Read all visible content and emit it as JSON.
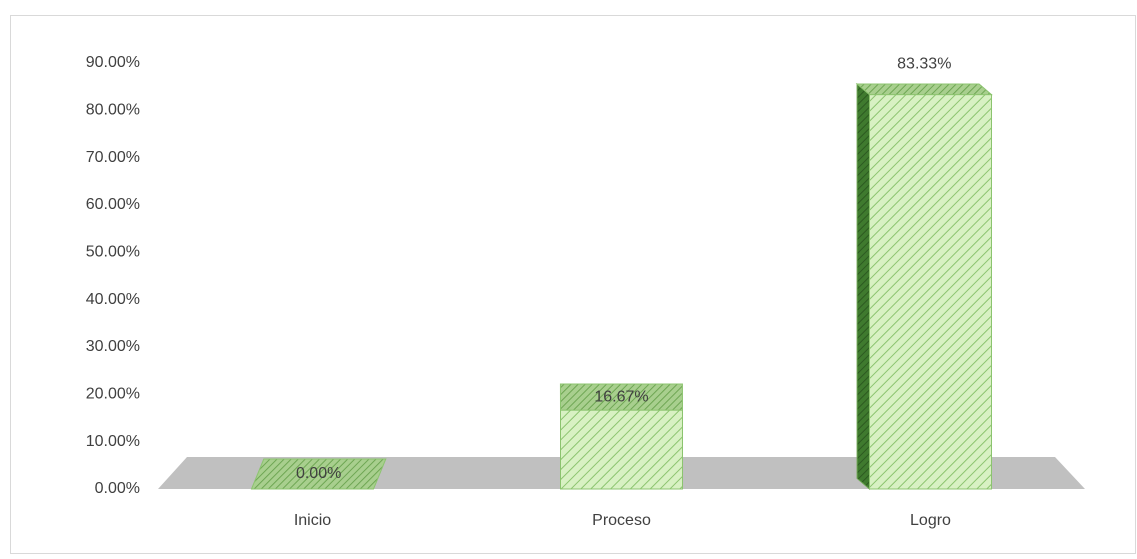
{
  "chart_data": {
    "type": "bar3d",
    "categories": [
      "Inicio",
      "Proceso",
      "Logro"
    ],
    "values": [
      0,
      16.67,
      83.33
    ],
    "value_labels": [
      "0.00%",
      "16.67%",
      "83.33%"
    ],
    "color": "#d8f1c3",
    "ylim": [
      0,
      90
    ],
    "yticks": [
      {
        "value": 0,
        "label": "0.00%"
      },
      {
        "value": 10,
        "label": "10.00%"
      },
      {
        "value": 20,
        "label": "20.00%"
      },
      {
        "value": 30,
        "label": "30.00%"
      },
      {
        "value": 40,
        "label": "40.00%"
      },
      {
        "value": 50,
        "label": "50.00%"
      },
      {
        "value": 60,
        "label": "60.00%"
      },
      {
        "value": 70,
        "label": "70.00%"
      },
      {
        "value": 80,
        "label": "80.00%"
      },
      {
        "value": 90,
        "label": "90.00%"
      }
    ]
  }
}
